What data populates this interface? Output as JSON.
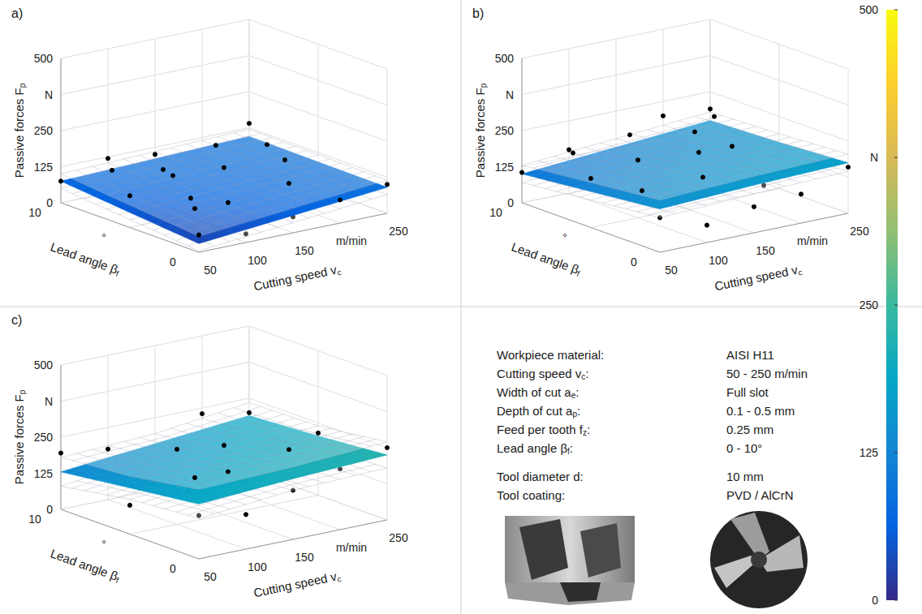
{
  "chart_data": [
    {
      "type": "surface",
      "panel": "a)",
      "xlabel": {
        "text": "Cutting speed v",
        "sub": "c"
      },
      "ylabel": {
        "text": "Lead angle β",
        "sub": "f"
      },
      "zlabel": {
        "text": "Passive forces F",
        "sub": "p"
      },
      "xlim": [
        50,
        250
      ],
      "xticks": [
        50,
        100,
        150,
        {
          "value": 200,
          "label": "m/min"
        },
        250
      ],
      "ylim": [
        0,
        10
      ],
      "yticks": [
        0,
        {
          "value": 5,
          "label": "°"
        },
        10
      ],
      "zlim": [
        0,
        500
      ],
      "zticks": [
        0,
        125,
        250,
        {
          "value": 375,
          "label": "N"
        },
        500
      ],
      "grid": true,
      "marker": "circle",
      "color": "#000000",
      "surface": {
        "x": [
          50,
          150,
          250
        ],
        "y": [
          0,
          5,
          10
        ],
        "fit": [
          [
            30,
            60,
            90
          ],
          [
            52,
            72,
            92
          ],
          [
            75,
            85,
            95
          ]
        ],
        "upper": [
          [
            55,
            85,
            115
          ],
          [
            77,
            97,
            117
          ],
          [
            100,
            110,
            120
          ]
        ],
        "lower": [
          [
            5,
            35,
            65
          ],
          [
            27,
            47,
            67
          ],
          [
            50,
            60,
            70
          ]
        ]
      },
      "points": [
        [
          50,
          0,
          60
        ],
        [
          50,
          5,
          110
        ],
        [
          50,
          10,
          75
        ],
        [
          75,
          2,
          100
        ],
        [
          75,
          8,
          130
        ],
        [
          100,
          0,
          30
        ],
        [
          100,
          4,
          85
        ],
        [
          100,
          6,
          150
        ],
        [
          100,
          10,
          120
        ],
        [
          125,
          3,
          70
        ],
        [
          125,
          7,
          95
        ],
        [
          150,
          0,
          55
        ],
        [
          150,
          5,
          140
        ],
        [
          150,
          8,
          65
        ],
        [
          150,
          10,
          100
        ],
        [
          175,
          2,
          120
        ],
        [
          175,
          6,
          45
        ],
        [
          200,
          0,
          80
        ],
        [
          200,
          4,
          150
        ],
        [
          200,
          9,
          115
        ],
        [
          225,
          3,
          60
        ],
        [
          225,
          7,
          135
        ],
        [
          250,
          0,
          100
        ],
        [
          250,
          5,
          70
        ],
        [
          250,
          10,
          140
        ]
      ]
    },
    {
      "type": "surface",
      "panel": "b)",
      "xlabel": {
        "text": "Cutting speed v",
        "sub": "c"
      },
      "ylabel": {
        "text": "Lead angle β",
        "sub": "f"
      },
      "zlabel": {
        "text": "Passive forces F",
        "sub": "p"
      },
      "xlim": [
        50,
        250
      ],
      "xticks": [
        50,
        100,
        150,
        {
          "value": 200,
          "label": "m/min"
        },
        250
      ],
      "ylim": [
        0,
        10
      ],
      "yticks": [
        0,
        {
          "value": 5,
          "label": "°"
        },
        10
      ],
      "zlim": [
        0,
        500
      ],
      "zticks": [
        0,
        125,
        250,
        {
          "value": 375,
          "label": "N"
        },
        500
      ],
      "grid": true,
      "marker": "circle",
      "color": "#000000",
      "surface": {
        "x": [
          50,
          150,
          250
        ],
        "y": [
          0,
          5,
          10
        ],
        "fit": [
          [
            150,
            165,
            175
          ],
          [
            125,
            145,
            160
          ],
          [
            100,
            125,
            150
          ]
        ],
        "upper": [
          [
            180,
            195,
            205
          ],
          [
            155,
            175,
            190
          ],
          [
            130,
            155,
            180
          ]
        ],
        "lower": [
          [
            120,
            135,
            145
          ],
          [
            95,
            115,
            130
          ],
          [
            70,
            95,
            120
          ]
        ]
      },
      "points": [
        [
          50,
          0,
          120
        ],
        [
          50,
          5,
          170
        ],
        [
          50,
          10,
          105
        ],
        [
          75,
          3,
          145
        ],
        [
          75,
          8,
          190
        ],
        [
          100,
          0,
          60
        ],
        [
          100,
          5,
          200
        ],
        [
          100,
          10,
          150
        ],
        [
          125,
          2,
          175
        ],
        [
          125,
          7,
          110
        ],
        [
          150,
          0,
          90
        ],
        [
          150,
          4,
          210
        ],
        [
          150,
          9,
          185
        ],
        [
          175,
          1,
          130
        ],
        [
          175,
          6,
          230
        ],
        [
          200,
          0,
          100
        ],
        [
          200,
          5,
          180
        ],
        [
          200,
          10,
          200
        ],
        [
          225,
          3,
          140
        ],
        [
          225,
          8,
          215
        ],
        [
          250,
          0,
          160
        ],
        [
          250,
          5,
          120
        ],
        [
          250,
          10,
          190
        ]
      ]
    },
    {
      "type": "surface",
      "panel": "c)",
      "xlabel": {
        "text": "Cutting speed v",
        "sub": "c"
      },
      "ylabel": {
        "text": "Lead angle β",
        "sub": "f"
      },
      "zlabel": {
        "text": "Passive forces F",
        "sub": "p"
      },
      "xlim": [
        50,
        250
      ],
      "xticks": [
        50,
        100,
        150,
        {
          "value": 200,
          "label": "m/min"
        },
        250
      ],
      "ylim": [
        0,
        10
      ],
      "yticks": [
        0,
        {
          "value": 5,
          "label": "°"
        },
        10
      ],
      "zlim": [
        0,
        500
      ],
      "zticks": [
        0,
        125,
        250,
        {
          "value": 375,
          "label": "N"
        },
        500
      ],
      "grid": true,
      "marker": "circle",
      "color": "#000000",
      "surface": {
        "x": [
          50,
          150,
          250
        ],
        "y": [
          0,
          5,
          10
        ],
        "fit": [
          [
            190,
            210,
            225
          ],
          [
            160,
            185,
            205
          ],
          [
            130,
            160,
            190
          ]
        ],
        "upper": [
          [
            240,
            250,
            270
          ],
          [
            200,
            220,
            240
          ],
          [
            180,
            195,
            235
          ]
        ],
        "lower": [
          [
            140,
            170,
            180
          ],
          [
            120,
            150,
            170
          ],
          [
            80,
            125,
            145
          ]
        ]
      },
      "points": [
        [
          50,
          0,
          150
        ],
        [
          50,
          5,
          100
        ],
        [
          50,
          10,
          195
        ],
        [
          75,
          2,
          230
        ],
        [
          75,
          8,
          140
        ],
        [
          100,
          0,
          120
        ],
        [
          100,
          5,
          260
        ],
        [
          100,
          10,
          175
        ],
        [
          125,
          3,
          200
        ],
        [
          125,
          7,
          90
        ],
        [
          150,
          0,
          170
        ],
        [
          150,
          5,
          240
        ],
        [
          150,
          10,
          150
        ],
        [
          175,
          2,
          260
        ],
        [
          175,
          7,
          130
        ],
        [
          200,
          0,
          210
        ],
        [
          200,
          5,
          190
        ],
        [
          200,
          10,
          230
        ],
        [
          225,
          4,
          160
        ],
        [
          250,
          0,
          250
        ],
        [
          250,
          5,
          215
        ],
        [
          250,
          10,
          200
        ]
      ]
    }
  ],
  "colorbar": {
    "range": [
      0,
      500
    ],
    "ticks": [
      0,
      125,
      250,
      {
        "value": 375,
        "label": "N"
      },
      500
    ]
  },
  "parameters": [
    [
      {
        "label": "Workpiece material:",
        "value": "AISI H11"
      },
      {
        "label": {
          "text": "Cutting speed v",
          "sub": "c",
          "after": ":"
        },
        "value": "50 - 250 m/min"
      },
      {
        "label": {
          "text": "Width of cut a",
          "sub": "e",
          "after": ":"
        },
        "value": "Full slot"
      },
      {
        "label": {
          "text": "Depth of cut a",
          "sub": "p",
          "after": ":"
        },
        "value": "0.1 - 0.5 mm"
      },
      {
        "label": {
          "text": "Feed per tooth f",
          "sub": "z",
          "after": ":"
        },
        "value": "0.25 mm"
      },
      {
        "label": {
          "text": "Lead angle β",
          "sub": "f",
          "after": ":"
        },
        "value": "0 - 10°"
      }
    ],
    [
      {
        "label": "Tool diameter d:",
        "value": "10 mm"
      },
      {
        "label": "Tool coating:",
        "value": "PVD / AlCrN"
      }
    ]
  ]
}
